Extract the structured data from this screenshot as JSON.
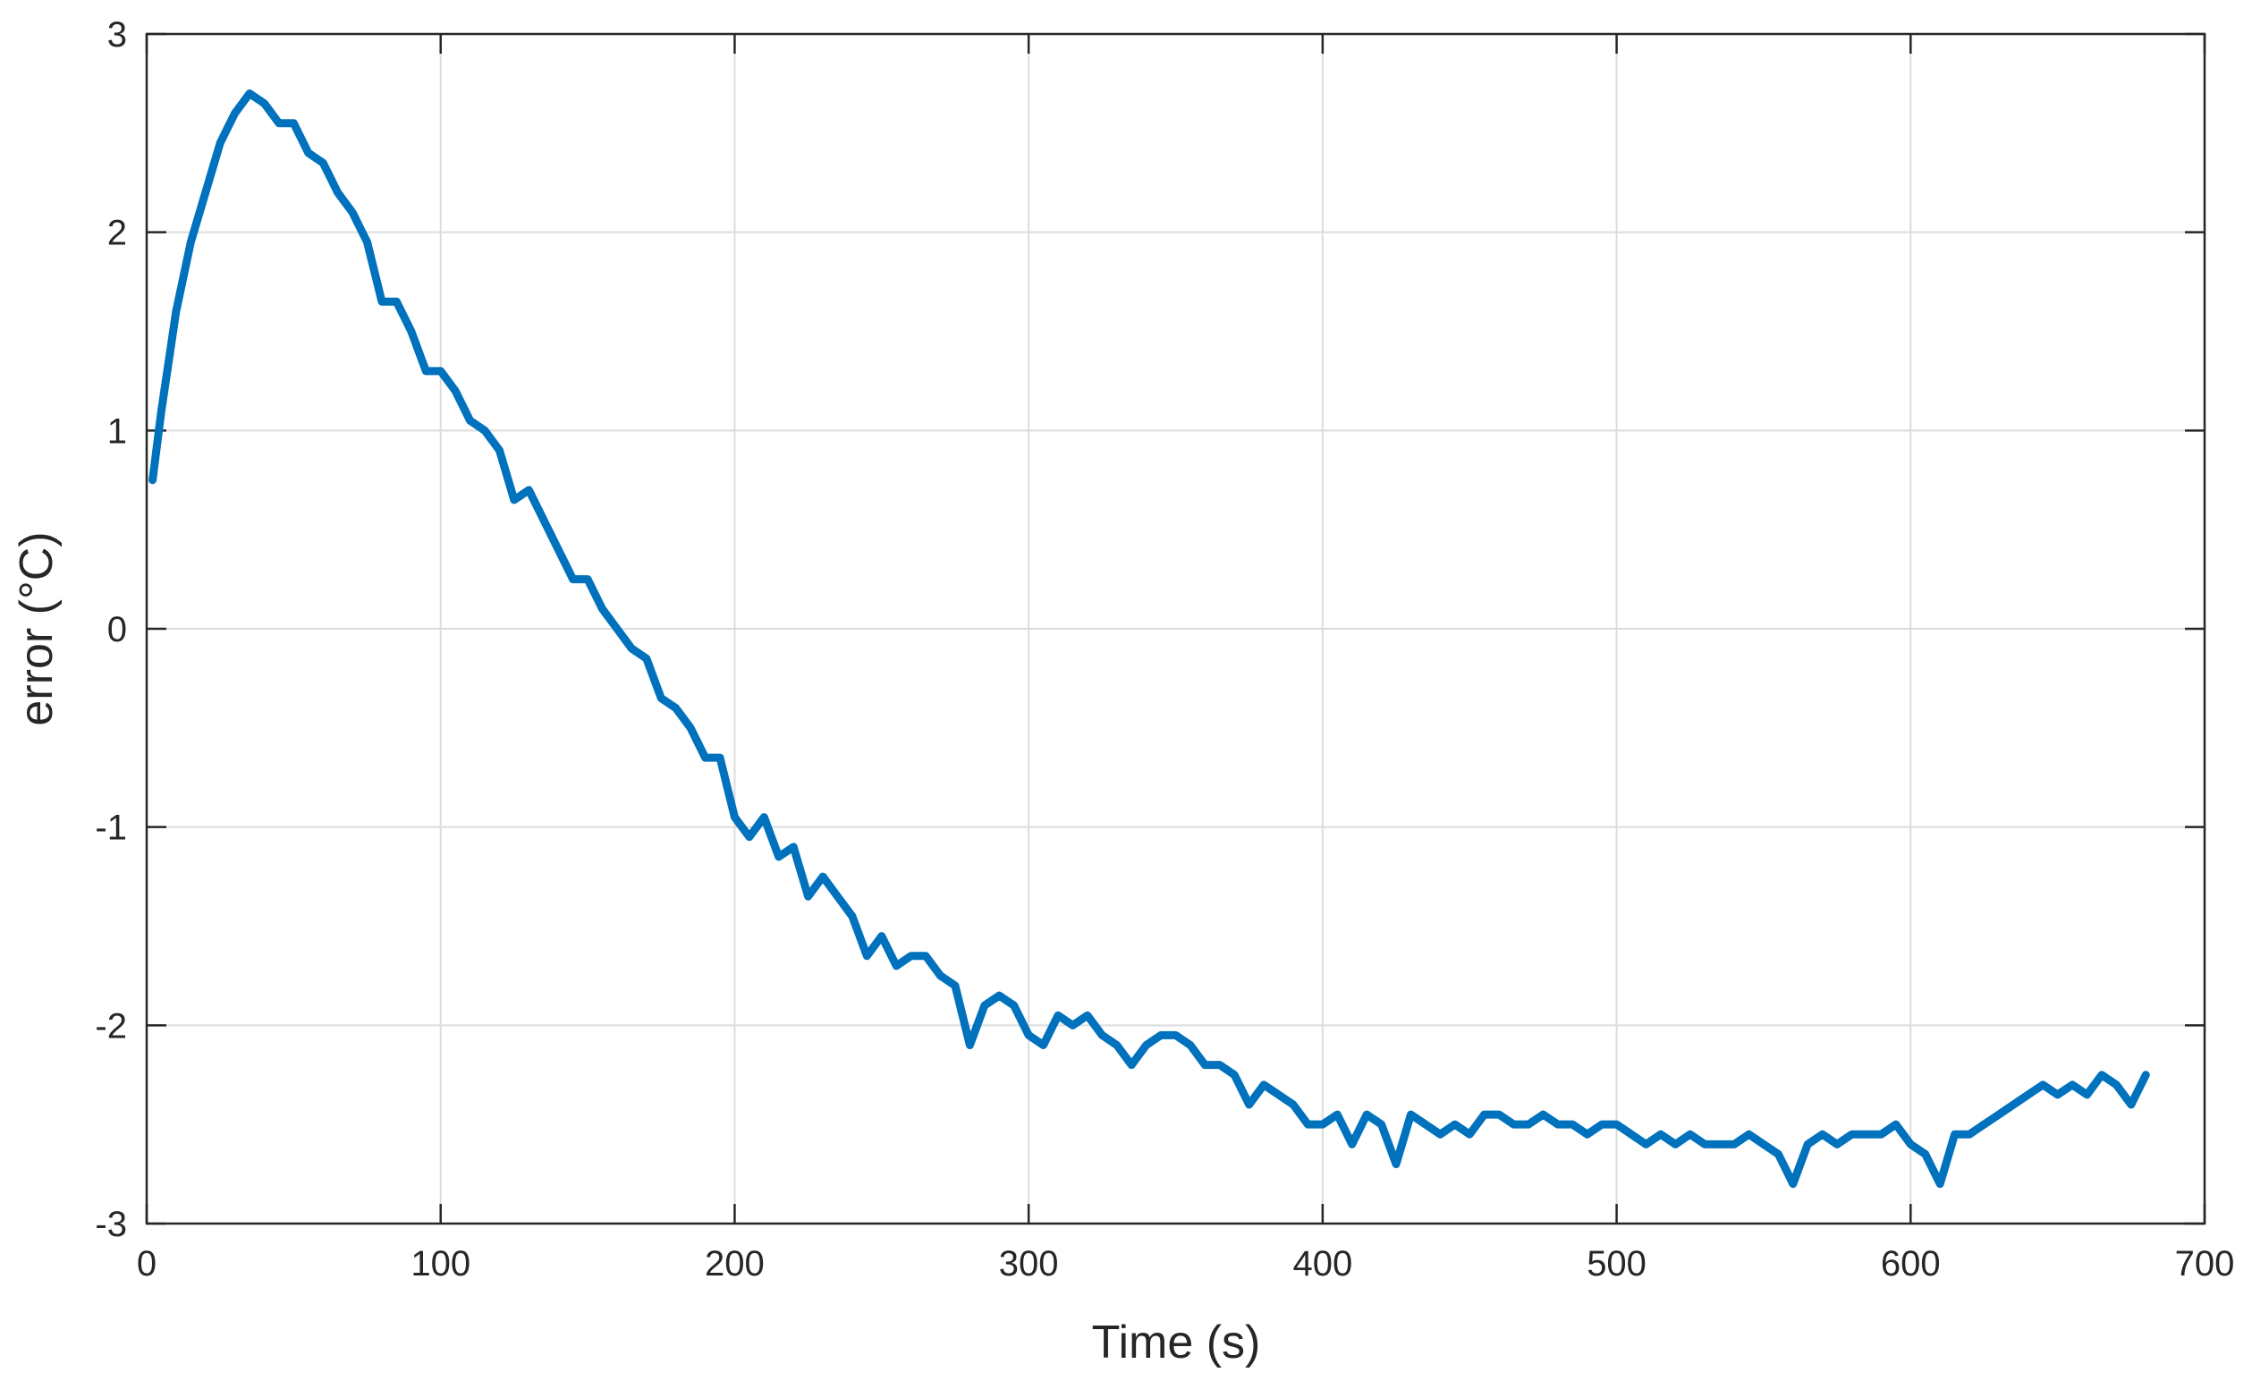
{
  "chart_data": {
    "type": "line",
    "xlabel": "Time (s)",
    "ylabel": "error (°C)",
    "x": [
      2,
      5,
      10,
      15,
      20,
      25,
      30,
      35,
      40,
      45,
      50,
      55,
      60,
      65,
      70,
      75,
      80,
      85,
      90,
      95,
      100,
      105,
      110,
      115,
      120,
      125,
      130,
      135,
      140,
      145,
      150,
      155,
      160,
      165,
      170,
      175,
      180,
      185,
      190,
      195,
      200,
      205,
      210,
      215,
      220,
      225,
      230,
      235,
      240,
      245,
      250,
      255,
      260,
      265,
      270,
      275,
      280,
      285,
      290,
      295,
      300,
      305,
      310,
      315,
      320,
      325,
      330,
      335,
      340,
      345,
      350,
      355,
      360,
      365,
      370,
      375,
      380,
      385,
      390,
      395,
      400,
      405,
      410,
      415,
      420,
      425,
      430,
      435,
      440,
      445,
      450,
      455,
      460,
      465,
      470,
      475,
      480,
      485,
      490,
      495,
      500,
      505,
      510,
      515,
      520,
      525,
      530,
      535,
      540,
      545,
      550,
      555,
      560,
      565,
      570,
      575,
      580,
      585,
      590,
      595,
      600,
      605,
      610,
      615,
      620,
      625,
      630,
      635,
      640,
      645,
      650,
      655,
      660,
      665,
      670,
      675,
      680
    ],
    "series": [
      {
        "color": "#0072bd",
        "values": [
          0.75,
          1.1,
          1.6,
          1.95,
          2.2,
          2.45,
          2.6,
          2.7,
          2.65,
          2.55,
          2.55,
          2.4,
          2.35,
          2.2,
          2.1,
          1.95,
          1.65,
          1.65,
          1.5,
          1.3,
          1.3,
          1.2,
          1.05,
          1.0,
          0.9,
          0.65,
          0.7,
          0.55,
          0.4,
          0.25,
          0.25,
          0.1,
          0.0,
          -0.1,
          -0.15,
          -0.35,
          -0.4,
          -0.5,
          -0.65,
          -0.65,
          -0.95,
          -1.05,
          -0.95,
          -1.15,
          -1.1,
          -1.35,
          -1.25,
          -1.35,
          -1.45,
          -1.65,
          -1.55,
          -1.7,
          -1.65,
          -1.65,
          -1.75,
          -1.8,
          -2.1,
          -1.9,
          -1.85,
          -1.9,
          -2.05,
          -2.1,
          -1.95,
          -2.0,
          -1.95,
          -2.05,
          -2.1,
          -2.2,
          -2.1,
          -2.05,
          -2.05,
          -2.1,
          -2.2,
          -2.2,
          -2.25,
          -2.4,
          -2.3,
          -2.35,
          -2.4,
          -2.5,
          -2.5,
          -2.45,
          -2.6,
          -2.45,
          -2.5,
          -2.7,
          -2.45,
          -2.5,
          -2.55,
          -2.5,
          -2.55,
          -2.45,
          -2.45,
          -2.5,
          -2.5,
          -2.45,
          -2.5,
          -2.5,
          -2.55,
          -2.5,
          -2.5,
          -2.55,
          -2.6,
          -2.55,
          -2.6,
          -2.55,
          -2.6,
          -2.6,
          -2.6,
          -2.55,
          -2.6,
          -2.65,
          -2.8,
          -2.6,
          -2.55,
          -2.6,
          -2.55,
          -2.55,
          -2.55,
          -2.5,
          -2.6,
          -2.65,
          -2.8,
          -2.55,
          -2.55,
          -2.5,
          -2.45,
          -2.4,
          -2.35,
          -2.3,
          -2.35,
          -2.3,
          -2.35,
          -2.25,
          -2.3,
          -2.4,
          -2.25
        ]
      }
    ],
    "xlim": [
      0,
      700
    ],
    "xticks": [
      0,
      100,
      200,
      300,
      400,
      500,
      600,
      700
    ],
    "ylim": [
      -3,
      3
    ],
    "yticks": [
      -3,
      -2,
      -1,
      0,
      1,
      2,
      3
    ],
    "grid": true
  }
}
